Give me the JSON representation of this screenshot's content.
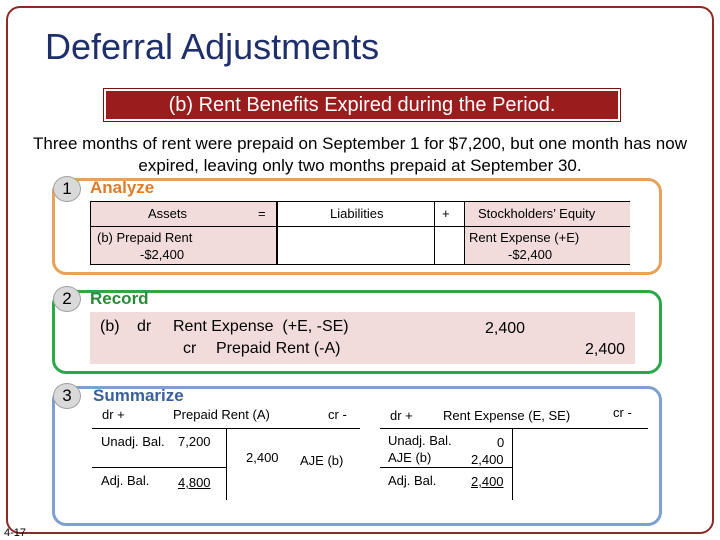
{
  "title": "Deferral Adjustments",
  "banner": "(b) Rent Benefits Expired during the Period.",
  "intro": "Three months of rent were prepaid on September 1 for $7,200, but one month has now expired, leaving only two months prepaid at September 30.",
  "analyze": {
    "number": "1",
    "label": "Analyze",
    "assets": "Assets",
    "equals": "=",
    "liabilities": "Liabilities",
    "plus": "+",
    "equity": "Stockholders’ Equity",
    "assets_line1": "(b) Prepaid Rent",
    "assets_line2": "-$2,400",
    "equity_line1": "Rent Expense (+E)",
    "equity_line2": "-$2,400"
  },
  "record": {
    "number": "2",
    "label": "Record",
    "entry_ref": "(b)",
    "dr": "dr",
    "debit_account": "Rent Expense  (+E, -SE)",
    "cr": "cr",
    "credit_account": "Prepaid Rent (-A)",
    "debit_amount": "2,400",
    "credit_amount": "2,400"
  },
  "summarize": {
    "number": "3",
    "label": "Summarize",
    "left": {
      "dr": "dr +",
      "title": "Prepaid Rent (A)",
      "cr": "cr -",
      "unadj_label": "Unadj. Bal.",
      "unadj_value": "7,200",
      "credit_value": "2,400",
      "credit_label": "AJE (b)",
      "adj_label": "Adj. Bal.",
      "adj_value": "4,800"
    },
    "right": {
      "dr": "dr +",
      "title": "Rent Expense (E, SE)",
      "cr": "cr -",
      "unadj_label": "Unadj. Bal.",
      "unadj_value": "0",
      "aje_label": "AJE (b)",
      "aje_value": "2,400",
      "adj_label": "Adj. Bal.",
      "adj_value": "2,400"
    }
  },
  "footer": "4-17",
  "colors": {
    "title": "#1f2f6b",
    "banner": "#9b1c1c",
    "analyze": "#e8a15a",
    "record": "#2aa84a",
    "summarize": "#7ea0cf",
    "highlight": "#f2dcdb"
  }
}
